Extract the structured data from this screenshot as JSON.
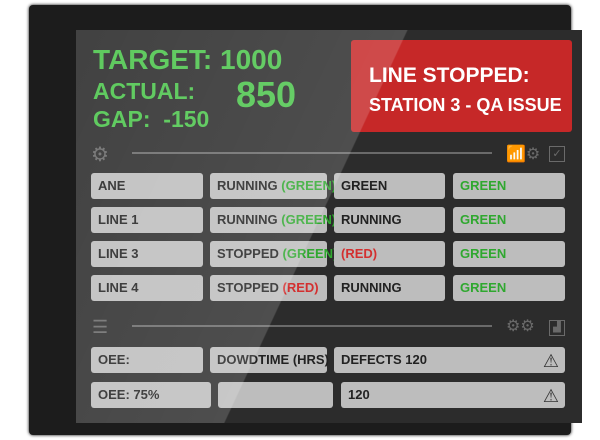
{
  "kpi": {
    "target": "TARGET: 1000",
    "actual_label": "ACTUAL:",
    "actual_value": "850",
    "gap": "GAP:  -150"
  },
  "alert": {
    "line1": "LINE STOPPED:",
    "line2": "STATION 3 - QA ISSUE",
    "color": "#c62828"
  },
  "grid": [
    [
      {
        "t": "ANE"
      },
      {
        "t": "RUNNING ",
        "s": "(GREEN)",
        "c": "g"
      },
      {
        "t": "GREEN"
      },
      {
        "t": "",
        "s": "GREEN",
        "c": "g"
      }
    ],
    [
      {
        "t": "LINE 1"
      },
      {
        "t": "RUNNING ",
        "s": "(GREEN)",
        "c": "g"
      },
      {
        "t": "RUNNING"
      },
      {
        "t": "",
        "s": "GREEN",
        "c": "g"
      }
    ],
    [
      {
        "t": "LINE 3"
      },
      {
        "t": "STOPPED ",
        "s": "(GREEN)",
        "c": "g"
      },
      {
        "t": "",
        "s": "(RED)",
        "c": "r"
      },
      {
        "t": "",
        "s": "GREEN",
        "c": "g"
      }
    ],
    [
      {
        "t": "LINE 4"
      },
      {
        "t": "STOPPED ",
        "s": "(RED)",
        "c": "r"
      },
      {
        "t": "RUNNING"
      },
      {
        "t": "",
        "s": "GREEN",
        "c": "g"
      }
    ]
  ],
  "metrics": {
    "r1": [
      "OEE:",
      "DOWDTIME (HRS)",
      "DEFECTS  120"
    ],
    "r2": [
      "OEE:    75%",
      "",
      "120"
    ]
  },
  "icons": [
    "gear-icon",
    "chart-gears-icon",
    "checkbox-icon",
    "ladder-icon",
    "gears-icon",
    "bar-chart-icon",
    "warning-icon"
  ]
}
